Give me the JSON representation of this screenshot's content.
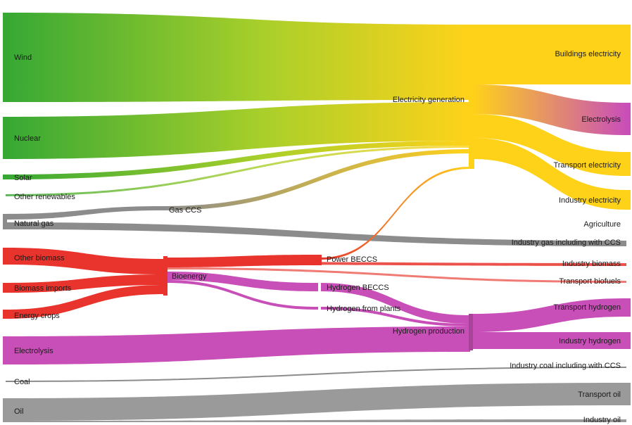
{
  "nodes": {
    "wind": "Wind",
    "nuclear": "Nuclear",
    "solar": "Solar",
    "other_renewables": "Other renewables",
    "natural_gas": "Natural gas",
    "gas_ccs": "Gas CCS",
    "other_biomass": "Other biomass",
    "biomass_imports": "Biomass imports",
    "energy_crops": "Energy crops",
    "bioenergy": "Bioenergy",
    "power_beccs": "Power BECCS",
    "hydrogen_beccs": "Hydrogen BECCS",
    "hydrogen_fuel_plants": "Hydrogen from plants",
    "electrolysis": "Electrolysis",
    "coal": "Coal",
    "oil": "Oil",
    "electricity_generation": "Electricity generation",
    "hydrogen_production": "Hydrogen production",
    "buildings_electricity": "Buildings electricity",
    "electrolysis_out": "Electrolysis",
    "transport_electricity": "Transport electricity",
    "industry_electricity": "Industry electricity",
    "agriculture": "Agriculture",
    "industry_gas": "Industry gas including with CCS",
    "industry_biomass": "Industry biomass",
    "transport_biofuels": "Transport biofuels",
    "transport_hydrogen": "Transport hydrogen",
    "industry_hydrogen": "Industry hydrogen",
    "industry_coal": "Industry coal including with CCS",
    "transport_oil": "Transport oil",
    "industry_oil": "Industry oil"
  },
  "colors": {
    "renewable_green": "#3aa832",
    "electricity_yellow": "#ffd21a",
    "gas_grey": "#8c8c8c",
    "bio_red": "#e8342c",
    "hydrogen_magenta": "#c94fb8",
    "oil_grey": "#9a9a9a"
  }
}
